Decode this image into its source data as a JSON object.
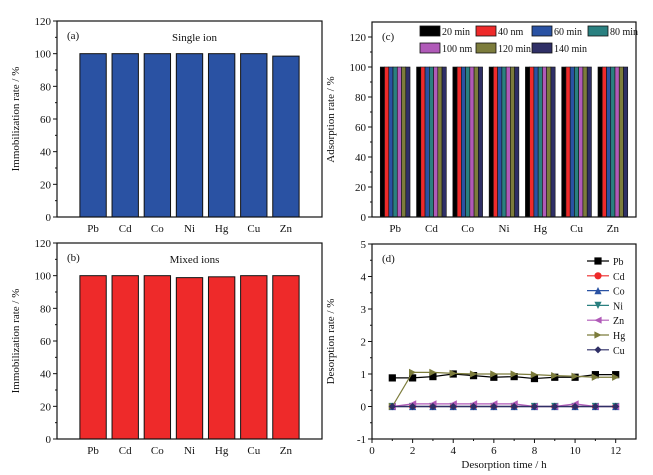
{
  "chart_data": [
    {
      "id": "a",
      "type": "bar",
      "panel_label": "(a)",
      "annotation": "Single ion",
      "title": "",
      "xlabel": "",
      "ylabel": "Immobilization rate / %",
      "categories": [
        "Pb",
        "Cd",
        "Co",
        "Ni",
        "Hg",
        "Cu",
        "Zn"
      ],
      "values": [
        100,
        100,
        100,
        100,
        100,
        100,
        98.5
      ],
      "ylim": [
        0,
        120
      ],
      "yticks": [
        0,
        20,
        40,
        60,
        80,
        100,
        120
      ],
      "bar_color": "#2a52a3",
      "grid": false
    },
    {
      "id": "b",
      "type": "bar",
      "panel_label": "(b)",
      "annotation": "Mixed ions",
      "title": "",
      "xlabel": "",
      "ylabel": "Immobilization rate / %",
      "categories": [
        "Pb",
        "Cd",
        "Co",
        "Ni",
        "Hg",
        "Cu",
        "Zn"
      ],
      "values": [
        100,
        100,
        100,
        98.8,
        99.3,
        100,
        100
      ],
      "ylim": [
        0,
        120
      ],
      "yticks": [
        0,
        20,
        40,
        60,
        80,
        100,
        120
      ],
      "bar_color": "#ee2a2a",
      "grid": false
    },
    {
      "id": "c",
      "type": "bar",
      "panel_label": "(c)",
      "title": "",
      "xlabel": "",
      "ylabel": "Adsorption rate / %",
      "categories": [
        "Pb",
        "Cd",
        "Co",
        "Ni",
        "Hg",
        "Cu",
        "Zn"
      ],
      "ylim": [
        0,
        130
      ],
      "yticks": [
        0,
        20,
        40,
        60,
        80,
        100,
        120
      ],
      "legend_position": "top",
      "series": [
        {
          "name": "20 min",
          "color": "#000000",
          "values": [
            100,
            100,
            100,
            100,
            100,
            100,
            100
          ]
        },
        {
          "name": "40 nm",
          "color": "#ee2a2a",
          "values": [
            100,
            100,
            100,
            100,
            100,
            100,
            100
          ]
        },
        {
          "name": "60 min",
          "color": "#2a52a3",
          "values": [
            100,
            100,
            100,
            100,
            100,
            100,
            100
          ]
        },
        {
          "name": "80 min",
          "color": "#2a8080",
          "values": [
            100,
            100,
            100,
            100,
            100,
            100,
            100
          ]
        },
        {
          "name": "100 nm",
          "color": "#b05ab8",
          "values": [
            100,
            100,
            100,
            100,
            100,
            100,
            100
          ]
        },
        {
          "name": "120 min",
          "color": "#7c7c3c",
          "values": [
            100,
            100,
            100,
            100,
            100,
            100,
            100
          ]
        },
        {
          "name": "140 min",
          "color": "#2f2f66",
          "values": [
            100,
            100,
            100,
            100,
            100,
            100,
            100
          ]
        }
      ],
      "grid": false
    },
    {
      "id": "d",
      "type": "line",
      "panel_label": "(d)",
      "title": "",
      "xlabel": "Desorption time / h",
      "ylabel": "Desorption rate / %",
      "xlim": [
        0,
        13
      ],
      "ylim": [
        -1,
        5
      ],
      "xticks": [
        0,
        2,
        4,
        6,
        8,
        10,
        12
      ],
      "yticks": [
        -1,
        0,
        1,
        2,
        3,
        4,
        5
      ],
      "x": [
        1,
        2,
        3,
        4,
        5,
        6,
        7,
        8,
        9,
        10,
        11,
        12
      ],
      "legend_position": "top-right",
      "series": [
        {
          "name": "Pb",
          "color": "#000000",
          "marker": "square",
          "values": [
            0.88,
            0.88,
            0.92,
            1.0,
            0.95,
            0.9,
            0.92,
            0.86,
            0.9,
            0.9,
            0.98,
            0.98
          ]
        },
        {
          "name": "Cd",
          "color": "#ee2a2a",
          "marker": "circle",
          "values": [
            0,
            0,
            0,
            0,
            0,
            0,
            0,
            0,
            0,
            0,
            0,
            0
          ]
        },
        {
          "name": "Co",
          "color": "#2a52a3",
          "marker": "triangle-up",
          "values": [
            0,
            0,
            0,
            0,
            0,
            0,
            0,
            0,
            0,
            0,
            0,
            0
          ]
        },
        {
          "name": "Ni",
          "color": "#2a8080",
          "marker": "triangle-down",
          "values": [
            0,
            0,
            0,
            0,
            0,
            0,
            0,
            0,
            0,
            0,
            0,
            0
          ]
        },
        {
          "name": "Zn",
          "color": "#b05ab8",
          "marker": "triangle-left",
          "values": [
            0,
            0.08,
            0.08,
            0.08,
            0.08,
            0.08,
            0.08,
            0,
            0,
            0.08,
            0,
            0
          ]
        },
        {
          "name": "Hg",
          "color": "#7c7c3c",
          "marker": "triangle-right",
          "values": [
            0,
            1.05,
            1.05,
            1.02,
            1.0,
            1.0,
            1.0,
            0.98,
            0.95,
            0.93,
            0.9,
            0.9
          ]
        },
        {
          "name": "Cu",
          "color": "#2f2f66",
          "marker": "diamond",
          "values": [
            0,
            0,
            0,
            0,
            0,
            0,
            0,
            0,
            0,
            0,
            0,
            0
          ]
        }
      ],
      "grid": false
    }
  ]
}
